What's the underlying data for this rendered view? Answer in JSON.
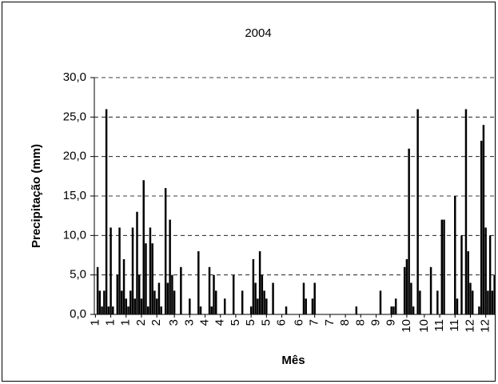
{
  "chart_data": {
    "type": "bar",
    "title": "2004",
    "x_label": "Mês",
    "y_label": "Precipitação (mm)",
    "color": "#000000",
    "grid": true,
    "ylim": [
      0,
      30
    ],
    "yticks": [
      {
        "value": 0,
        "label": "0,0"
      },
      {
        "value": 5,
        "label": "5,0"
      },
      {
        "value": 10,
        "label": "10,0"
      },
      {
        "value": 15,
        "label": "15,0"
      },
      {
        "value": 20,
        "label": "20,0"
      },
      {
        "value": 25,
        "label": "25,0"
      },
      {
        "value": 30,
        "label": "30,0"
      }
    ],
    "categories": [
      "1",
      null,
      null,
      null,
      null,
      null,
      null,
      "1",
      null,
      null,
      null,
      null,
      null,
      null,
      "1",
      null,
      null,
      null,
      null,
      null,
      null,
      "2",
      null,
      null,
      null,
      null,
      null,
      null,
      "2",
      null,
      null,
      null,
      null,
      null,
      null,
      null,
      "3",
      null,
      null,
      null,
      null,
      null,
      null,
      "3",
      null,
      null,
      null,
      null,
      null,
      null,
      "4",
      null,
      null,
      null,
      null,
      null,
      null,
      "4",
      null,
      null,
      null,
      null,
      null,
      null,
      "5",
      null,
      null,
      null,
      null,
      null,
      null,
      "5",
      null,
      null,
      null,
      null,
      null,
      null,
      "5",
      null,
      null,
      null,
      null,
      null,
      null,
      "6",
      null,
      null,
      null,
      null,
      null,
      null,
      null,
      "6",
      null,
      null,
      null,
      null,
      null,
      null,
      "7",
      null,
      null,
      null,
      null,
      null,
      null,
      "7",
      null,
      null,
      null,
      null,
      null,
      null,
      "8",
      null,
      null,
      null,
      null,
      null,
      null,
      "8",
      null,
      null,
      null,
      null,
      null,
      null,
      "9",
      null,
      null,
      null,
      null,
      null,
      null,
      "9",
      null,
      null,
      null,
      null,
      null,
      null,
      "10",
      null,
      null,
      null,
      null,
      null,
      null,
      null,
      "10",
      null,
      null,
      null,
      null,
      null,
      null,
      "11",
      null,
      null,
      null,
      null,
      null,
      null,
      "11",
      null,
      null,
      null,
      null,
      null,
      null,
      "12",
      null,
      null,
      null,
      null,
      null,
      null,
      "12",
      null,
      null,
      null,
      null
    ],
    "values": [
      0,
      6,
      3,
      1,
      3,
      26,
      1,
      11,
      1,
      0,
      5,
      11,
      3,
      7,
      2,
      1,
      3,
      11,
      2,
      13,
      5,
      2,
      17,
      9,
      1,
      11,
      9,
      3,
      2,
      4,
      1,
      0,
      16,
      4,
      12,
      5,
      3,
      0,
      0,
      6,
      0,
      0,
      0,
      2,
      0,
      0,
      0,
      8,
      1,
      0,
      0,
      0,
      6,
      1,
      5,
      3,
      0,
      0,
      0,
      2,
      0,
      0,
      0,
      5,
      0,
      0,
      0,
      3,
      0,
      0,
      0,
      1,
      7,
      4,
      2,
      8,
      5,
      3,
      2,
      0,
      0,
      4,
      0,
      0,
      0,
      0,
      0,
      1,
      0,
      0,
      0,
      0,
      0,
      0,
      0,
      4,
      2,
      0,
      0,
      2,
      4,
      0,
      0,
      0,
      0,
      0,
      0,
      0,
      0,
      0,
      0,
      0,
      0,
      0,
      0,
      0,
      0,
      0,
      0,
      1,
      0,
      0,
      0,
      0,
      0,
      0,
      0,
      0,
      0,
      0,
      3,
      0,
      0,
      0,
      0,
      1,
      1,
      2,
      0,
      0,
      0,
      6,
      7,
      21,
      4,
      1,
      0,
      26,
      3,
      0,
      0,
      0,
      0,
      6,
      0,
      0,
      3,
      0,
      12,
      12,
      0,
      0,
      0,
      0,
      15,
      2,
      0,
      10,
      0,
      26,
      8,
      4,
      3,
      0,
      0,
      1,
      22,
      24,
      11,
      3,
      10,
      3,
      5
    ]
  }
}
